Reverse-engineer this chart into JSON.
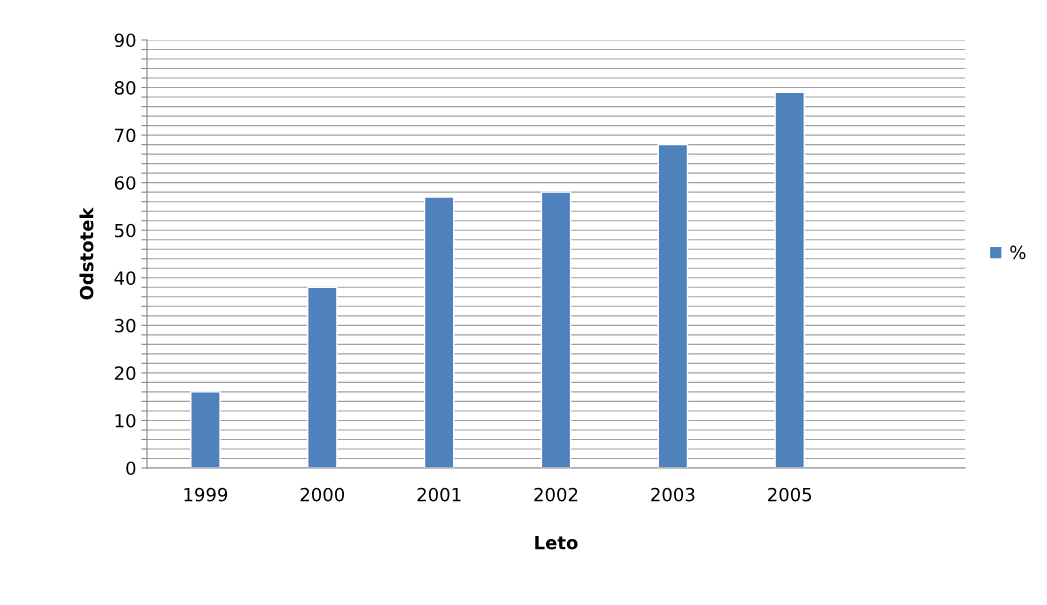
{
  "chart_data": {
    "type": "bar",
    "xlabel": "Leto",
    "ylabel": "Odstotek",
    "categories": [
      "1999",
      "2000",
      "2001",
      "2002",
      "2003",
      "2005",
      null
    ],
    "series": [
      {
        "name": "%",
        "color": "#4f81bd",
        "values": [
          16,
          38,
          57,
          58,
          68,
          79,
          null
        ]
      }
    ],
    "ylim": [
      0,
      90
    ],
    "yticks": [
      0,
      {
        "value": 2,
        "label": null
      },
      {
        "value": 4,
        "label": null
      },
      {
        "value": 6,
        "label": null
      },
      {
        "value": 8,
        "label": null
      },
      10,
      {
        "value": 12,
        "label": null
      },
      {
        "value": 14,
        "label": null
      },
      {
        "value": 16,
        "label": null
      },
      {
        "value": 18,
        "label": null
      },
      20,
      {
        "value": 22,
        "label": null
      },
      {
        "value": 24,
        "label": null
      },
      {
        "value": 26,
        "label": null
      },
      {
        "value": 28,
        "label": null
      },
      30,
      {
        "value": 32,
        "label": null
      },
      {
        "value": 34,
        "label": null
      },
      {
        "value": 36,
        "label": null
      },
      {
        "value": 38,
        "label": null
      },
      40,
      {
        "value": 42,
        "label": null
      },
      {
        "value": 44,
        "label": null
      },
      {
        "value": 46,
        "label": null
      },
      {
        "value": 48,
        "label": null
      },
      50,
      {
        "value": 52,
        "label": null
      },
      {
        "value": 54,
        "label": null
      },
      {
        "value": 56,
        "label": null
      },
      {
        "value": 58,
        "label": null
      },
      60,
      {
        "value": 62,
        "label": null
      },
      {
        "value": 64,
        "label": null
      },
      {
        "value": 66,
        "label": null
      },
      {
        "value": 68,
        "label": null
      },
      70,
      {
        "value": 72,
        "label": null
      },
      {
        "value": 74,
        "label": null
      },
      {
        "value": 76,
        "label": null
      },
      {
        "value": 78,
        "label": null
      },
      80,
      {
        "value": 82,
        "label": null
      },
      {
        "value": 84,
        "label": null
      },
      {
        "value": 86,
        "label": null
      },
      {
        "value": 88,
        "label": null
      },
      90
    ],
    "grid": "y",
    "legend": "right"
  }
}
